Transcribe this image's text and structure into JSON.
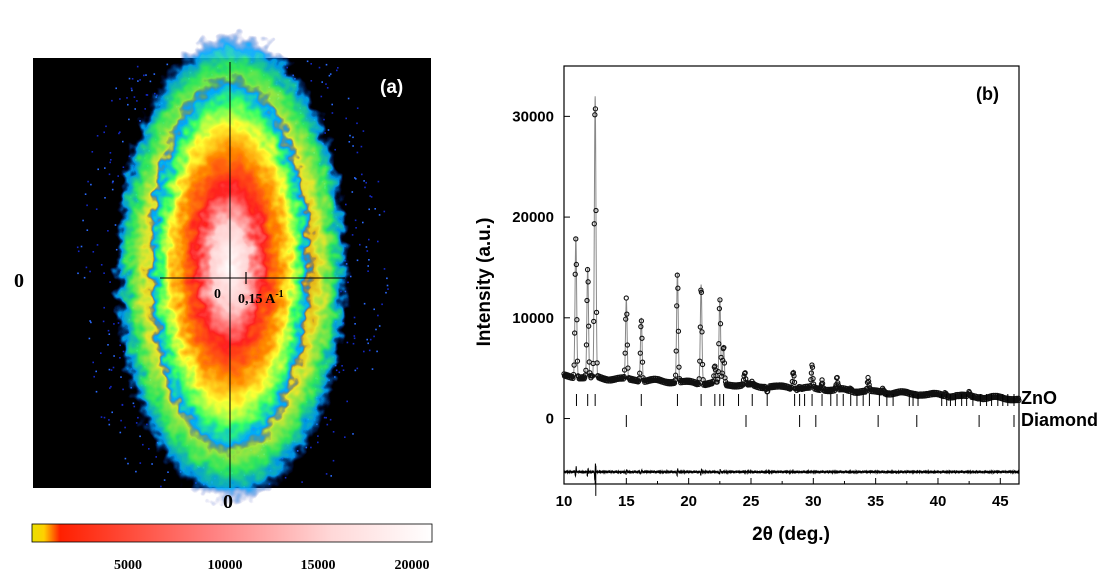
{
  "panel_a": {
    "label": "(a)",
    "axis_zero_left": "0",
    "axis_zero_bottom": "0",
    "center_zero": "0",
    "scale_label": "0,15 A",
    "scale_superscript": "-1",
    "colorbar": {
      "ticks": [
        "5000",
        "10000",
        "15000",
        "20000"
      ],
      "stops": [
        "#ffff00",
        "#ff0000",
        "#ff9a9a",
        "#ffffff"
      ]
    }
  },
  "chart_data": {
    "type": "scatter",
    "panel_label": "(b)",
    "xlabel": "2θ (deg.)",
    "ylabel": "Intensity (a.u.)",
    "xlim": [
      10,
      46.5
    ],
    "ylim": [
      -6500,
      35000
    ],
    "x_ticks": [
      10,
      15,
      20,
      25,
      30,
      35,
      40,
      45
    ],
    "y_ticks": [
      0,
      10000,
      20000,
      30000
    ],
    "baseline": 4200,
    "difference_offset": -5300,
    "peaks": [
      {
        "x": 10.95,
        "y": 18000
      },
      {
        "x": 11.9,
        "y": 15000
      },
      {
        "x": 12.5,
        "y": 32000
      },
      {
        "x": 15.0,
        "y": 11800
      },
      {
        "x": 16.2,
        "y": 10000
      },
      {
        "x": 19.1,
        "y": 14500
      },
      {
        "x": 21.0,
        "y": 13300
      },
      {
        "x": 22.1,
        "y": 5200
      },
      {
        "x": 22.5,
        "y": 11900
      },
      {
        "x": 22.8,
        "y": 7200
      },
      {
        "x": 24.5,
        "y": 4500
      },
      {
        "x": 25.1,
        "y": 3500
      },
      {
        "x": 26.3,
        "y": 2800
      },
      {
        "x": 28.4,
        "y": 4800
      },
      {
        "x": 28.9,
        "y": 3200
      },
      {
        "x": 29.9,
        "y": 5200
      },
      {
        "x": 30.7,
        "y": 3800
      },
      {
        "x": 31.9,
        "y": 4000
      },
      {
        "x": 33.0,
        "y": 3000
      },
      {
        "x": 34.4,
        "y": 3900
      },
      {
        "x": 35.6,
        "y": 3000
      },
      {
        "x": 37.5,
        "y": 2500
      },
      {
        "x": 38.4,
        "y": 2400
      },
      {
        "x": 40.6,
        "y": 2600
      },
      {
        "x": 41.5,
        "y": 2300
      },
      {
        "x": 42.5,
        "y": 2500
      },
      {
        "x": 43.4,
        "y": 2200
      },
      {
        "x": 44.3,
        "y": 2100
      },
      {
        "x": 45.6,
        "y": 2000
      }
    ],
    "reflection_sets": [
      {
        "name": "ZnO",
        "positions": [
          11.0,
          11.9,
          12.5,
          16.2,
          19.1,
          21.0,
          22.1,
          22.5,
          22.8,
          24.0,
          25.1,
          26.3,
          28.5,
          28.9,
          29.3,
          29.9,
          30.7,
          31.4,
          31.9,
          32.4,
          33.0,
          33.5,
          34.0,
          34.5,
          35.3,
          35.9,
          36.4,
          37.7,
          38.0,
          38.4,
          40.3,
          40.7,
          41.0,
          41.4,
          41.9,
          42.3,
          42.8,
          43.4,
          43.9,
          44.3,
          44.8,
          45.2,
          45.6,
          46.1
        ]
      },
      {
        "name": "Diamond",
        "positions": [
          15.0,
          24.6,
          28.9,
          30.2,
          35.2,
          38.3,
          43.3,
          46.1
        ]
      }
    ]
  }
}
